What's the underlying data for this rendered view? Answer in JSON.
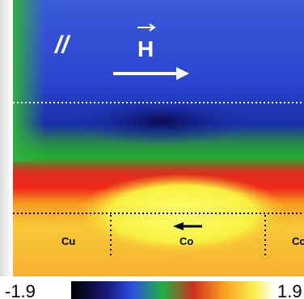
{
  "image": {
    "labels": {
      "parallel": "//",
      "field": "H",
      "left_material": "Cu",
      "center_material": "Co",
      "right_material": "Co"
    },
    "colorbar": {
      "min": -1.9,
      "max": 1.9
    }
  }
}
